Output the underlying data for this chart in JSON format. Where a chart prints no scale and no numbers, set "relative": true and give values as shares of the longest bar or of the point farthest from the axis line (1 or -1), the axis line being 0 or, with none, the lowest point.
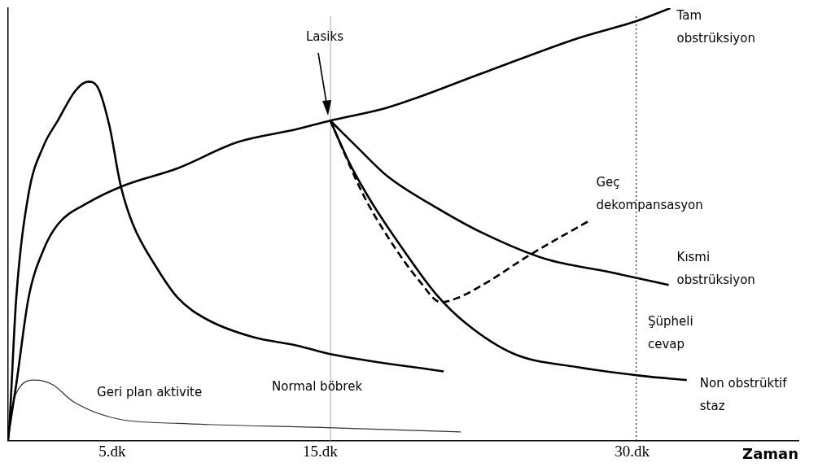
{
  "chart_data": {
    "type": "line",
    "relative": true,
    "xlabel": "Zaman",
    "xlim": [
      0,
      38
    ],
    "xticks": [
      {
        "value": 5,
        "label": "5.dk"
      },
      {
        "value": 15,
        "label": "15.dk"
      },
      {
        "value": 30,
        "label": "30.dk"
      }
    ],
    "grid": false,
    "legend": false,
    "marker": "none",
    "line_style": "solid",
    "series": [
      {
        "name": "Normal böbrek",
        "color": "#000000",
        "x": [
          0,
          0.04,
          0.39,
          0.98,
          1.69,
          2.39,
          3.25,
          3.84,
          4.27,
          4.86,
          5.41,
          6.0,
          7.14,
          8.16,
          9.57,
          11.73,
          13.88,
          15.49,
          20.94
        ],
        "values": [
          0,
          0.02,
          0.33,
          0.57,
          0.68,
          0.74,
          0.81,
          0.83,
          0.82,
          0.73,
          0.59,
          0.5,
          0.4,
          0.33,
          0.28,
          0.24,
          0.22,
          0.2,
          0.16
        ]
      },
      {
        "name": "Tam obstrüksiyon",
        "color": "#000000",
        "x": [
          0,
          0.39,
          0.98,
          1.69,
          2.39,
          3.84,
          5.57,
          8.16,
          11.02,
          13.88,
          15.49,
          18.24,
          22.82,
          27.37,
          30.2,
          31.84
        ],
        "values": [
          0.01,
          0.13,
          0.33,
          0.44,
          0.5,
          0.55,
          0.59,
          0.63,
          0.69,
          0.72,
          0.74,
          0.77,
          0.85,
          0.93,
          0.97,
          1
        ]
      },
      {
        "name": "Kısmi obstrüksiyon",
        "color": "#000000",
        "x": [
          15.49,
          16.75,
          18.27,
          20.55,
          22.82,
          25.84,
          28.9,
          31.76
        ],
        "values": [
          0.74,
          0.68,
          0.61,
          0.54,
          0.48,
          0.42,
          0.39,
          0.36
        ]
      },
      {
        "name": "Non obstrüktif staz",
        "color": "#000000",
        "x": [
          15.49,
          16.43,
          17.49,
          19.02,
          20.55,
          22.04,
          24.35,
          27.37,
          30.43,
          32.63
        ],
        "values": [
          0.74,
          0.64,
          0.55,
          0.44,
          0.34,
          0.27,
          0.2,
          0.17,
          0.15,
          0.14
        ]
      },
      {
        "name": "Geç dekompansasyon",
        "color": "#000000",
        "line_style": "dashed",
        "x": [
          15.49,
          17.06,
          18.27,
          19.76,
          20.82,
          21.61,
          22.82,
          25.1,
          28.0
        ],
        "values": [
          0.74,
          0.57,
          0.47,
          0.37,
          0.32,
          0.33,
          0.36,
          0.43,
          0.51
        ]
      },
      {
        "name": "Geri plan aktivite",
        "color": "#333333",
        "x": [
          0,
          0.12,
          0.67,
          1.25,
          2.12,
          3.14,
          5.29,
          8.16,
          15.33,
          21.76
        ],
        "values": [
          0.01,
          0.06,
          0.13,
          0.14,
          0.13,
          0.09,
          0.05,
          0.04,
          0.03,
          0.02
        ]
      }
    ],
    "ref_lines": [
      {
        "axis": "x",
        "value": 15.5,
        "color": "#aaaaaa",
        "line_style": "solid"
      },
      {
        "axis": "x",
        "value": 30.2,
        "color": "#000000",
        "line_style": "dotted"
      }
    ],
    "annotations": [
      "Lasiks",
      "Şüpheli cevap"
    ]
  }
}
